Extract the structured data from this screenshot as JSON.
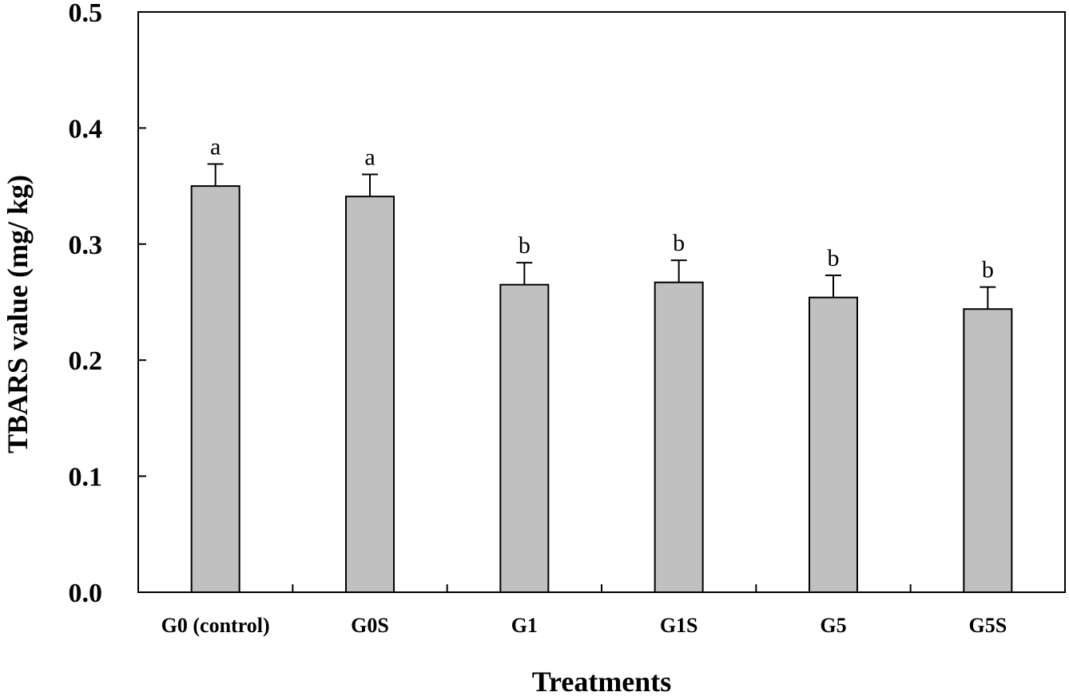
{
  "chart_data": {
    "type": "bar",
    "xlabel": "Treatments",
    "ylabel": "TBARS value (mg/ kg)",
    "categories": [
      "G0 (control)",
      "G0S",
      "G1",
      "G1S",
      "G5",
      "G5S"
    ],
    "values": [
      0.35,
      0.341,
      0.265,
      0.267,
      0.254,
      0.244
    ],
    "errors": [
      0.019,
      0.019,
      0.019,
      0.019,
      0.019,
      0.019
    ],
    "significance_letters": [
      "a",
      "a",
      "b",
      "b",
      "b",
      "b"
    ],
    "ylim": [
      0.0,
      0.5
    ],
    "yticks": [
      "0.0",
      "0.1",
      "0.2",
      "0.3",
      "0.4",
      "0.5"
    ],
    "grid": false,
    "legend": "none",
    "colors": {
      "bar_fill": "#c0c0c0",
      "bar_stroke": "#000000",
      "axis": "#000000"
    }
  }
}
